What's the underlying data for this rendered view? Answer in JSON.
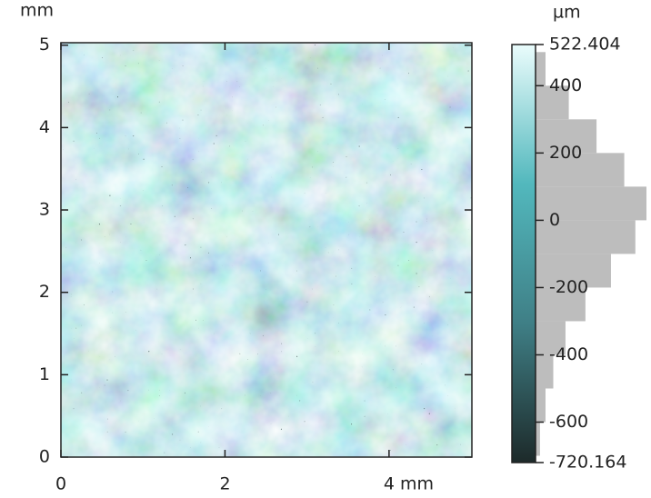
{
  "chart_data": {
    "type": "surface-map",
    "x_unit": "mm",
    "y_unit": "mm",
    "xlim": [
      0,
      5.01
    ],
    "xticks": [
      0,
      2,
      {
        "value": 4,
        "label": "4 mm"
      }
    ],
    "ylim": [
      0,
      5.03
    ],
    "yticks": [
      0,
      1,
      2,
      3,
      4,
      5
    ],
    "colorbar": {
      "unit": "µm",
      "lim": [
        -720.164,
        522.404
      ],
      "ticks": [
        {
          "value": 522.404,
          "label": "522.404"
        },
        400,
        200,
        0,
        -200,
        -400,
        -600,
        {
          "value": -720.164,
          "label": "-720.164"
        }
      ],
      "colors": [
        "#1d2a2a",
        "#3f7f86",
        "#52b8bd",
        "#eafcfc"
      ]
    },
    "histogram": {
      "bins": [
        -700,
        -600,
        -500,
        -400,
        -300,
        -200,
        -100,
        0,
        100,
        200,
        300,
        400,
        500
      ],
      "values": [
        4,
        9,
        16,
        27,
        45,
        68,
        90,
        100,
        80,
        55,
        30,
        9
      ],
      "color": "#bdbdbd"
    }
  }
}
